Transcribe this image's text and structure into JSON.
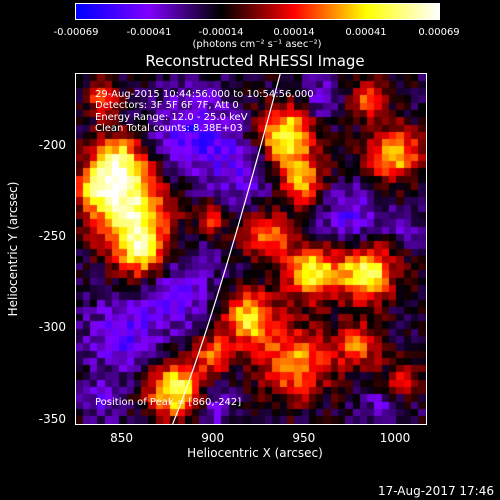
{
  "colorbar": {
    "ticks": [
      "-0.00069",
      "-0.00041",
      "-0.00014",
      "0.00014",
      "0.00041",
      "0.00069"
    ],
    "units": "(photons cm⁻² s⁻¹ asec⁻²)"
  },
  "annotations": {
    "line1": "29-Aug-2015 10:44:56.000 to 10:54:56.000",
    "line2": "Detectors: 3F 5F 6F 7F, Att 0",
    "line3": "Energy Range: 12.0 - 25.0 keV",
    "line4": "Clean    Total counts: 8.38E+03",
    "position": "Position of Peak = [860,-242]"
  },
  "timestamp": "17-Aug-2017 17:46",
  "chart_data": {
    "type": "heatmap",
    "title": "Reconstructed RHESSI Image",
    "xlabel": "Heliocentric X (arcsec)",
    "ylabel": "Heliocentric Y (arcsec)",
    "xlim": [
      825,
      1017
    ],
    "ylim": [
      -353,
      -161
    ],
    "x_ticks": [
      "850",
      "900",
      "950",
      "1000"
    ],
    "y_ticks": [
      "-200",
      "-250",
      "-300",
      "-350"
    ],
    "color_range": [
      -0.00069,
      0.00069
    ],
    "colormap": [
      "#0000ff",
      "#8000ff",
      "#000000",
      "#ff0000",
      "#ffff00",
      "#ffffff"
    ],
    "peak": [
      860,
      -242
    ],
    "hot_regions": [
      {
        "x": 855,
        "y": -235,
        "r": 20,
        "v": 0.00062
      },
      {
        "x": 848,
        "y": -210,
        "r": 14,
        "v": 0.00055
      },
      {
        "x": 862,
        "y": -260,
        "r": 14,
        "v": 0.0005
      },
      {
        "x": 835,
        "y": -225,
        "r": 10,
        "v": 0.0003
      },
      {
        "x": 940,
        "y": -195,
        "r": 15,
        "v": 0.0006
      },
      {
        "x": 948,
        "y": -220,
        "r": 12,
        "v": 0.00045
      },
      {
        "x": 930,
        "y": -250,
        "r": 12,
        "v": 0.00035
      },
      {
        "x": 955,
        "y": -270,
        "r": 14,
        "v": 0.00055
      },
      {
        "x": 985,
        "y": -270,
        "r": 14,
        "v": 0.0006
      },
      {
        "x": 1000,
        "y": -205,
        "r": 14,
        "v": 0.00045
      },
      {
        "x": 985,
        "y": -175,
        "r": 10,
        "v": 0.0003
      },
      {
        "x": 920,
        "y": -295,
        "r": 14,
        "v": 0.0005
      },
      {
        "x": 945,
        "y": -320,
        "r": 18,
        "v": 0.0004
      },
      {
        "x": 980,
        "y": -310,
        "r": 12,
        "v": 0.0003
      },
      {
        "x": 880,
        "y": -335,
        "r": 14,
        "v": 0.0006
      },
      {
        "x": 900,
        "y": -315,
        "r": 10,
        "v": 0.0003
      },
      {
        "x": 1005,
        "y": -330,
        "r": 10,
        "v": 0.0002
      },
      {
        "x": 900,
        "y": -240,
        "r": 8,
        "v": 0.00025
      },
      {
        "x": 840,
        "y": -175,
        "r": 9,
        "v": 0.00025
      }
    ],
    "cold_regions": [
      {
        "x": 890,
        "y": -195,
        "r": 22,
        "v": -0.00045
      },
      {
        "x": 920,
        "y": -215,
        "r": 18,
        "v": -0.00035
      },
      {
        "x": 880,
        "y": -280,
        "r": 22,
        "v": -0.0004
      },
      {
        "x": 850,
        "y": -305,
        "r": 18,
        "v": -0.0004
      },
      {
        "x": 975,
        "y": -240,
        "r": 16,
        "v": -0.0004
      },
      {
        "x": 1005,
        "y": -245,
        "r": 9,
        "v": -0.00025
      },
      {
        "x": 960,
        "y": -175,
        "r": 12,
        "v": -0.00035
      },
      {
        "x": 900,
        "y": -345,
        "r": 12,
        "v": -0.00035
      },
      {
        "x": 995,
        "y": -345,
        "r": 12,
        "v": -0.0003
      },
      {
        "x": 840,
        "y": -340,
        "r": 10,
        "v": -0.00035
      }
    ],
    "limb_curve": [
      [
        937,
        -161
      ],
      [
        900,
        -300
      ],
      [
        878,
        -353
      ]
    ]
  }
}
